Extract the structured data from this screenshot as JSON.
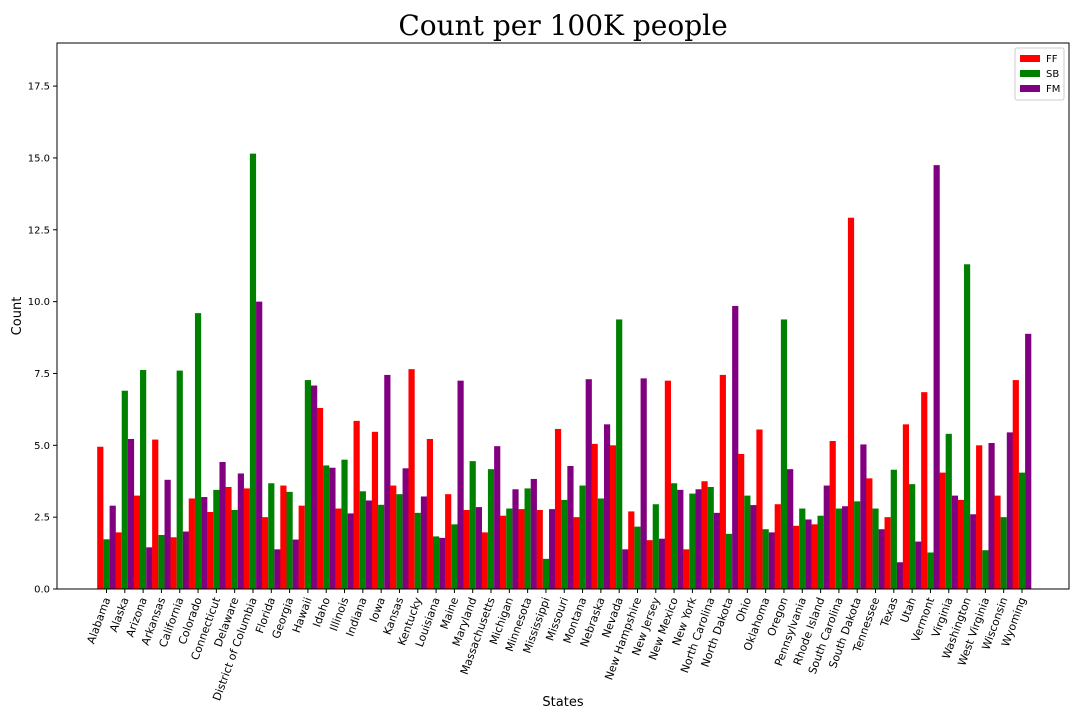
{
  "chart_data": {
    "type": "bar",
    "title": "Count per 100K people",
    "xlabel": "States",
    "ylabel": "Count",
    "ylim": [
      0,
      19
    ],
    "yticks": [
      "0.0",
      "2.5",
      "5.0",
      "7.5",
      "10.0",
      "12.5",
      "15.0",
      "17.5"
    ],
    "ytick_values": [
      0,
      2.5,
      5,
      7.5,
      10,
      12.5,
      15,
      17.5
    ],
    "legend_position": "top-right",
    "categories": [
      "Alabama",
      "Alaska",
      "Arizona",
      "Arkansas",
      "California",
      "Colorado",
      "Connecticut",
      "Delaware",
      "District of Columbia",
      "Florida",
      "Georgia",
      "Hawaii",
      "Idaho",
      "Illinois",
      "Indiana",
      "Iowa",
      "Kansas",
      "Kentucky",
      "Louisiana",
      "Maine",
      "Maryland",
      "Massachusetts",
      "Michigan",
      "Minnesota",
      "Mississippi",
      "Missouri",
      "Montana",
      "Nebraska",
      "Nevada",
      "New Hampshire",
      "New Jersey",
      "New Mexico",
      "New York",
      "North Carolina",
      "North Dakota",
      "Ohio",
      "Oklahoma",
      "Oregon",
      "Pennsylvania",
      "Rhode Island",
      "South Carolina",
      "South Dakota",
      "Tennessee",
      "Texas",
      "Utah",
      "Vermont",
      "Virginia",
      "Washington",
      "West Virginia",
      "Wisconsin",
      "Wyoming"
    ],
    "series": [
      {
        "name": "FF",
        "color": "#ff0000",
        "values": [
          4.95,
          1.97,
          3.25,
          5.2,
          1.8,
          3.15,
          2.68,
          3.55,
          3.5,
          2.5,
          3.6,
          2.9,
          6.3,
          2.8,
          5.85,
          5.47,
          3.6,
          7.65,
          5.22,
          3.3,
          2.75,
          1.97,
          2.55,
          2.78,
          2.75,
          5.57,
          2.5,
          5.05,
          5.0,
          2.7,
          1.7,
          7.25,
          1.38,
          3.75,
          7.45,
          4.7,
          5.55,
          2.95,
          2.2,
          2.25,
          5.15,
          12.92,
          3.85,
          2.5,
          5.73,
          6.85,
          4.05,
          3.1,
          5.0,
          3.25,
          7.27
        ]
      },
      {
        "name": "SB",
        "color": "#008000",
        "values": [
          1.73,
          6.9,
          7.62,
          1.88,
          7.6,
          9.6,
          3.45,
          2.75,
          15.15,
          3.68,
          3.38,
          7.27,
          4.3,
          4.5,
          3.4,
          2.93,
          3.3,
          2.65,
          1.83,
          2.25,
          4.45,
          4.17,
          2.8,
          3.5,
          1.05,
          3.1,
          3.6,
          3.15,
          9.38,
          2.17,
          2.95,
          3.68,
          3.32,
          3.55,
          1.92,
          3.25,
          2.08,
          9.38,
          2.8,
          2.55,
          2.8,
          3.05,
          2.8,
          4.15,
          3.65,
          1.27,
          5.4,
          11.3,
          1.35,
          2.5,
          4.05
        ]
      },
      {
        "name": "FM",
        "color": "#800080",
        "values": [
          2.9,
          5.22,
          1.45,
          3.8,
          2.0,
          3.2,
          4.42,
          4.02,
          10.0,
          1.38,
          1.72,
          7.08,
          4.22,
          2.63,
          3.08,
          7.45,
          4.2,
          3.22,
          1.78,
          7.25,
          2.85,
          4.97,
          3.47,
          3.83,
          2.78,
          4.28,
          7.3,
          5.73,
          1.38,
          7.33,
          1.75,
          3.45,
          3.47,
          2.65,
          9.85,
          2.92,
          1.97,
          4.17,
          2.42,
          3.6,
          2.88,
          5.03,
          2.08,
          0.93,
          1.65,
          14.75,
          3.25,
          2.6,
          5.08,
          5.45,
          8.88
        ]
      }
    ]
  }
}
